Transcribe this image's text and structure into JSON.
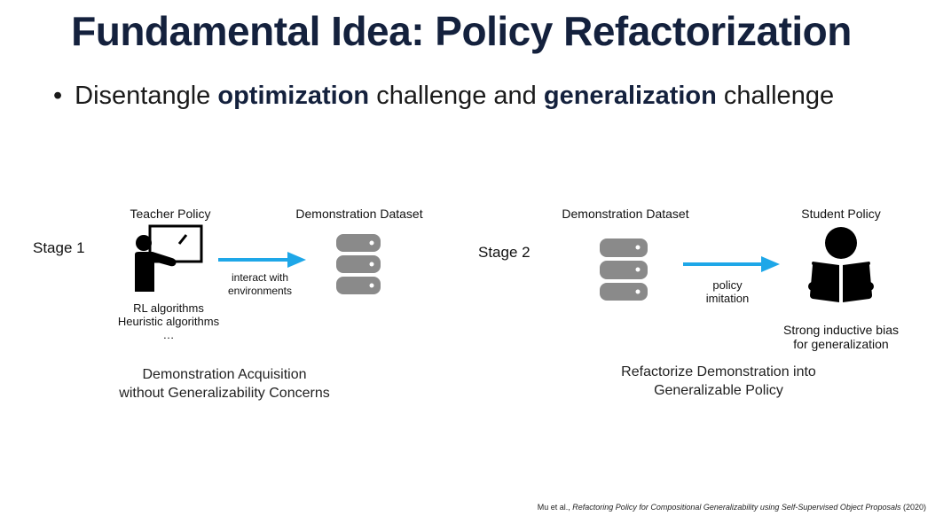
{
  "slide": {
    "title": "Fundamental Idea: Policy Refactorization",
    "bullet": {
      "prefix": "Disentangle ",
      "term1": "optimization",
      "middle": " challenge and ",
      "term2": "generalization",
      "suffix": " challenge"
    }
  },
  "stage1": {
    "label": "Stage 1",
    "teacher_title": "Teacher Policy",
    "teacher_notes": [
      "RL algorithms",
      "Heuristic algorithms",
      "…"
    ],
    "arrow_label": [
      "interact with",
      "environments"
    ],
    "dataset_title": "Demonstration Dataset",
    "caption": [
      "Demonstration Acquisition",
      "without Generalizability Concerns"
    ]
  },
  "stage2": {
    "label": "Stage 2",
    "dataset_title": "Demonstration Dataset",
    "arrow_label": [
      "policy",
      "imitation"
    ],
    "student_title": "Student Policy",
    "student_notes": [
      "Strong inductive bias",
      "for generalization"
    ],
    "caption": [
      "Refactorize Demonstration into",
      "Generalizable Policy"
    ]
  },
  "citation": {
    "authors": "Mu et al., ",
    "paper": "Refactoring Policy for Compositional Generalizability using Self-Supervised Object Proposals",
    "year": " (2020)"
  },
  "colors": {
    "title": "#14213d",
    "arrow": "#1ea7e8",
    "database": "#8a8a8a",
    "icon": "#000000"
  },
  "icons": [
    "teacher-icon",
    "database-icon",
    "right-arrow-icon",
    "student-reading-icon"
  ]
}
